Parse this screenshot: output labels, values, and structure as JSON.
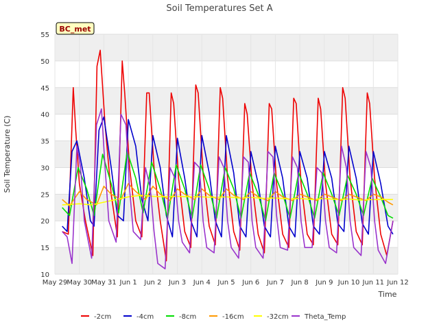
{
  "chart_data": {
    "type": "line",
    "title": "Soil Temperatures Set A",
    "xlabel": "Time",
    "ylabel": "Soil Temperature (C)",
    "station_badge": "BC_met",
    "ylim": [
      10,
      55
    ],
    "yticks": [
      10,
      15,
      20,
      25,
      30,
      35,
      40,
      45,
      50,
      55
    ],
    "xlim": [
      0,
      14
    ],
    "xticks": [
      {
        "value": 0,
        "label": "May 29"
      },
      {
        "value": 1,
        "label": "May 30"
      },
      {
        "value": 2,
        "label": "May 31"
      },
      {
        "value": 3,
        "label": "Jun 1"
      },
      {
        "value": 4,
        "label": "Jun 2"
      },
      {
        "value": 5,
        "label": "Jun 3"
      },
      {
        "value": 6,
        "label": "Jun 4"
      },
      {
        "value": 7,
        "label": "Jun 5"
      },
      {
        "value": 8,
        "label": "Jun 6"
      },
      {
        "value": 9,
        "label": "Jun 7"
      },
      {
        "value": 10,
        "label": "Jun 8"
      },
      {
        "value": 11,
        "label": "Jun 9"
      },
      {
        "value": 12,
        "label": "Jun 10"
      },
      {
        "value": 13,
        "label": "Jun 11"
      },
      {
        "value": 14,
        "label": "Jun 12"
      }
    ],
    "grid": "horizontal bands",
    "legend_position": "bottom",
    "series": [
      {
        "name": "-2cm",
        "color": "#ee0000",
        "x": [
          0.3,
          0.55,
          0.75,
          0.85,
          1.0,
          1.25,
          1.55,
          1.72,
          1.85,
          2.05,
          2.3,
          2.55,
          2.75,
          2.85,
          3.05,
          3.3,
          3.55,
          3.75,
          3.85,
          4.05,
          4.3,
          4.55,
          4.75,
          4.85,
          5.05,
          5.3,
          5.55,
          5.75,
          5.85,
          6.05,
          6.3,
          6.55,
          6.75,
          6.85,
          7.05,
          7.3,
          7.55,
          7.75,
          7.85,
          8.05,
          8.3,
          8.55,
          8.75,
          8.85,
          9.05,
          9.3,
          9.55,
          9.75,
          9.85,
          10.05,
          10.3,
          10.55,
          10.75,
          10.85,
          11.05,
          11.3,
          11.55,
          11.75,
          11.85,
          12.05,
          12.3,
          12.55,
          12.75,
          12.85,
          13.05,
          13.3,
          13.55,
          13.8
        ],
        "y": [
          18.0,
          17.5,
          45.0,
          37.0,
          27.0,
          20.0,
          13.5,
          49.0,
          52.0,
          38.0,
          25.0,
          17.0,
          50.0,
          44.0,
          30.0,
          20.0,
          17.0,
          44.0,
          44.0,
          30.0,
          20.0,
          12.5,
          44.0,
          42.0,
          28.0,
          18.0,
          15.0,
          45.5,
          44.0,
          29.0,
          19.0,
          15.5,
          45.0,
          43.0,
          28.0,
          18.0,
          14.5,
          42.0,
          40.0,
          27.0,
          17.5,
          14.0,
          42.0,
          41.0,
          27.0,
          17.5,
          15.0,
          43.0,
          42.0,
          27.0,
          17.5,
          15.5,
          43.0,
          41.0,
          27.0,
          17.5,
          15.5,
          45.0,
          43.0,
          28.0,
          18.0,
          15.5,
          44.0,
          42.0,
          28.0,
          17.5,
          13.5,
          20.0
        ]
      },
      {
        "name": "-4cm",
        "color": "#0000cc",
        "x": [
          0.3,
          0.5,
          0.7,
          0.9,
          1.2,
          1.45,
          1.6,
          1.8,
          2.0,
          2.3,
          2.55,
          2.8,
          3.0,
          3.3,
          3.55,
          3.8,
          4.0,
          4.3,
          4.55,
          4.8,
          5.0,
          5.3,
          5.55,
          5.8,
          6.0,
          6.3,
          6.55,
          6.8,
          7.0,
          7.3,
          7.55,
          7.8,
          8.0,
          8.3,
          8.55,
          8.8,
          9.0,
          9.3,
          9.55,
          9.8,
          10.0,
          10.3,
          10.55,
          10.8,
          11.0,
          11.3,
          11.55,
          11.8,
          12.0,
          12.3,
          12.55,
          12.8,
          13.0,
          13.3,
          13.6,
          13.8
        ],
        "y": [
          19.0,
          18.0,
          33.0,
          35.0,
          28.0,
          20.0,
          19.0,
          37.0,
          39.5,
          30.0,
          21.0,
          20.0,
          39.0,
          34.0,
          24.0,
          20.0,
          36.0,
          30.0,
          21.0,
          17.0,
          35.5,
          28.0,
          20.0,
          17.0,
          36.0,
          29.0,
          20.0,
          17.0,
          36.0,
          29.0,
          19.0,
          17.0,
          33.0,
          27.0,
          19.0,
          17.0,
          34.0,
          28.0,
          19.0,
          17.0,
          33.0,
          28.0,
          19.0,
          17.5,
          33.0,
          28.0,
          19.5,
          18.0,
          34.0,
          28.0,
          19.5,
          17.5,
          33.0,
          27.0,
          19.0,
          17.5
        ]
      },
      {
        "name": "-8cm",
        "color": "#00dd00",
        "x": [
          0.3,
          0.6,
          0.95,
          1.3,
          1.6,
          1.95,
          2.3,
          2.6,
          2.95,
          3.3,
          3.6,
          3.95,
          4.3,
          4.6,
          4.95,
          5.3,
          5.6,
          5.95,
          6.3,
          6.6,
          6.95,
          7.3,
          7.6,
          7.95,
          8.3,
          8.6,
          8.95,
          9.3,
          9.6,
          9.95,
          10.3,
          10.6,
          10.95,
          11.3,
          11.6,
          11.95,
          12.3,
          12.6,
          12.95,
          13.3,
          13.6,
          13.8
        ],
        "y": [
          22.5,
          21.0,
          30.0,
          26.0,
          21.0,
          32.5,
          27.0,
          21.5,
          33.0,
          28.0,
          21.5,
          31.0,
          26.0,
          20.5,
          30.5,
          26.0,
          20.5,
          30.5,
          26.0,
          20.5,
          30.0,
          26.0,
          20.5,
          29.0,
          25.0,
          20.0,
          29.0,
          25.0,
          20.5,
          29.0,
          25.0,
          20.5,
          29.0,
          25.0,
          21.0,
          28.5,
          25.0,
          21.0,
          28.0,
          24.5,
          21.0,
          20.5
        ]
      },
      {
        "name": "-16cm",
        "color": "#ff9900",
        "x": [
          0.3,
          0.6,
          1.0,
          1.3,
          1.7,
          2.0,
          2.3,
          2.7,
          3.0,
          3.3,
          3.7,
          4.0,
          4.3,
          4.7,
          5.0,
          5.3,
          5.7,
          6.0,
          6.3,
          6.7,
          7.0,
          7.3,
          7.7,
          8.0,
          8.3,
          8.7,
          9.0,
          9.3,
          9.7,
          10.0,
          10.3,
          10.7,
          11.0,
          11.3,
          11.7,
          12.0,
          12.3,
          12.7,
          13.0,
          13.3,
          13.6,
          13.8
        ],
        "y": [
          24.0,
          22.8,
          25.5,
          24.0,
          23.0,
          26.5,
          25.0,
          24.0,
          27.0,
          25.5,
          24.0,
          26.5,
          25.0,
          23.8,
          26.0,
          25.0,
          24.0,
          26.0,
          24.8,
          24.0,
          26.0,
          24.8,
          24.0,
          25.5,
          24.5,
          23.8,
          25.5,
          24.5,
          23.8,
          25.0,
          24.5,
          23.8,
          25.0,
          24.5,
          23.8,
          25.0,
          24.5,
          23.8,
          25.0,
          24.5,
          23.5,
          23.0
        ]
      },
      {
        "name": "-32cm",
        "color": "#ffff00",
        "x": [
          0.3,
          1.0,
          1.5,
          2.0,
          2.5,
          3.0,
          3.5,
          4.0,
          4.5,
          5.0,
          5.5,
          6.0,
          6.5,
          7.0,
          7.5,
          8.0,
          8.5,
          9.0,
          9.5,
          10.0,
          10.5,
          11.0,
          11.5,
          12.0,
          12.5,
          13.0,
          13.5,
          13.8
        ],
        "y": [
          23.0,
          23.2,
          23.0,
          23.5,
          24.0,
          24.5,
          24.8,
          24.6,
          24.5,
          24.6,
          24.5,
          24.5,
          24.4,
          24.5,
          24.3,
          24.4,
          24.2,
          24.3,
          24.1,
          24.2,
          24.0,
          24.2,
          24.0,
          24.1,
          23.9,
          24.0,
          24.0,
          24.0
        ]
      },
      {
        "name": "Theta_Temp",
        "color": "#9933cc",
        "x": [
          0.3,
          0.5,
          0.7,
          0.9,
          1.05,
          1.2,
          1.5,
          1.7,
          1.9,
          2.05,
          2.2,
          2.5,
          2.7,
          2.9,
          3.05,
          3.2,
          3.5,
          3.7,
          3.9,
          4.05,
          4.2,
          4.5,
          4.7,
          4.9,
          5.05,
          5.2,
          5.5,
          5.7,
          5.9,
          6.05,
          6.2,
          6.5,
          6.7,
          6.9,
          7.05,
          7.2,
          7.5,
          7.7,
          7.9,
          8.05,
          8.2,
          8.5,
          8.7,
          8.9,
          9.05,
          9.2,
          9.5,
          9.7,
          9.9,
          10.05,
          10.2,
          10.5,
          10.7,
          10.9,
          11.05,
          11.2,
          11.5,
          11.7,
          11.9,
          12.05,
          12.2,
          12.5,
          12.7,
          12.9,
          13.05,
          13.2,
          13.5,
          13.8
        ],
        "y": [
          18.0,
          17.0,
          12.0,
          34.0,
          30.0,
          20.0,
          13.0,
          38.0,
          41.0,
          30.0,
          20.0,
          16.0,
          40.0,
          38.0,
          26.0,
          18.0,
          16.5,
          30.0,
          26.0,
          18.0,
          12.0,
          11.0,
          30.0,
          28.0,
          20.0,
          16.0,
          14.0,
          31.0,
          30.0,
          20.0,
          15.0,
          14.0,
          32.0,
          30.0,
          20.0,
          15.0,
          13.0,
          32.0,
          31.0,
          20.0,
          15.0,
          13.0,
          33.0,
          32.0,
          21.0,
          15.0,
          14.5,
          32.0,
          30.0,
          20.0,
          15.0,
          15.0,
          30.0,
          29.0,
          20.0,
          15.0,
          14.0,
          34.0,
          30.0,
          20.0,
          15.0,
          13.5,
          33.0,
          30.0,
          20.0,
          14.5,
          12.0,
          20.0
        ]
      }
    ]
  }
}
